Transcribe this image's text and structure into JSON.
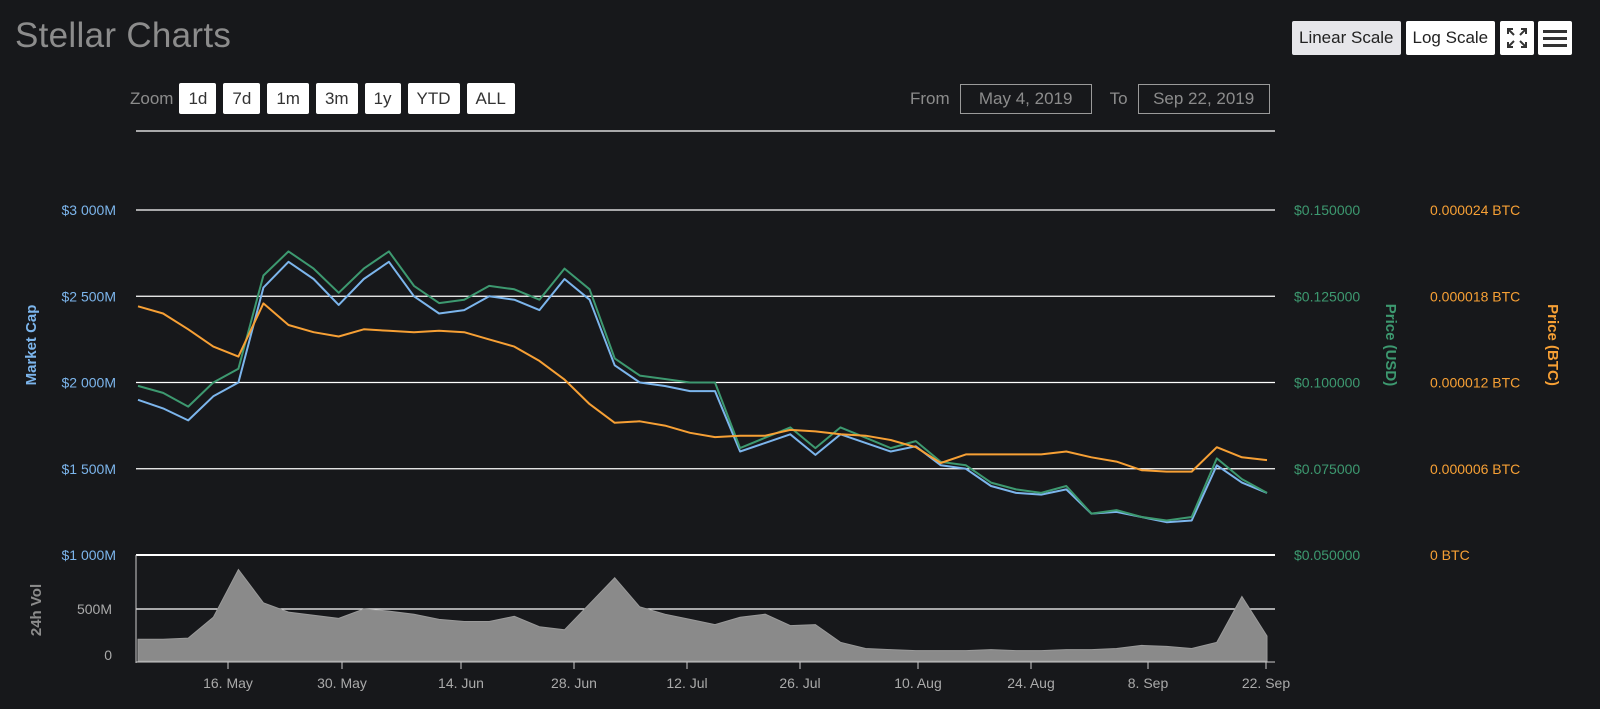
{
  "header": {
    "title": "Stellar Charts",
    "scale_buttons": [
      "Linear Scale",
      "Log Scale"
    ],
    "active_scale": "Linear Scale",
    "icons": [
      "fullscreen-icon",
      "menu-icon"
    ]
  },
  "zoom": {
    "label": "Zoom",
    "buttons": [
      "1d",
      "7d",
      "1m",
      "3m",
      "1y",
      "YTD",
      "ALL"
    ]
  },
  "range": {
    "from_label": "From",
    "from_value": "May 4, 2019",
    "to_label": "To",
    "to_value": "Sep 22, 2019"
  },
  "colors": {
    "background": "#17181b",
    "market_cap": "#7cb5ec",
    "price_usd": "#3d9970",
    "price_btc": "#f7a035",
    "volume": "#8a8a8a",
    "grid": "#ffffff"
  },
  "chart_data": {
    "type": "line",
    "x_domain": [
      "May 10, 2019",
      "Sep 22, 2019"
    ],
    "x_ticks": [
      "16. May",
      "30. May",
      "14. Jun",
      "28. Jun",
      "12. Jul",
      "26. Jul",
      "10. Aug",
      "24. Aug",
      "8. Sep",
      "22. Sep"
    ],
    "axes": {
      "market_cap": {
        "label": "Market Cap",
        "ticks": [
          "$1 000M",
          "$1 500M",
          "$2 000M",
          "$2 500M",
          "$3 000M"
        ],
        "range": [
          1000,
          3000
        ],
        "unit": "$M"
      },
      "price_usd": {
        "label": "Price (USD)",
        "ticks": [
          "$0.050000",
          "$0.075000",
          "$0.100000",
          "$0.125000",
          "$0.150000"
        ],
        "range": [
          0.05,
          0.15
        ]
      },
      "price_btc": {
        "label": "Price (BTC)",
        "ticks": [
          "0 BTC",
          "0.000006 BTC",
          "0.000012 BTC",
          "0.000018 BTC",
          "0.000024 BTC"
        ],
        "range": [
          0,
          2.4e-05
        ]
      },
      "volume": {
        "label": "24h Vol",
        "ticks": [
          "0",
          "500M"
        ],
        "range": [
          0,
          1000
        ],
        "unit": "M"
      }
    },
    "x": [
      "May 10",
      "May 13",
      "May 16",
      "May 19",
      "May 22",
      "May 25",
      "May 28",
      "May 31",
      "Jun 3",
      "Jun 6",
      "Jun 9",
      "Jun 12",
      "Jun 15",
      "Jun 18",
      "Jun 21",
      "Jun 24",
      "Jun 27",
      "Jun 30",
      "Jul 3",
      "Jul 6",
      "Jul 9",
      "Jul 12",
      "Jul 15",
      "Jul 18",
      "Jul 21",
      "Jul 24",
      "Jul 27",
      "Jul 30",
      "Aug 2",
      "Aug 5",
      "Aug 8",
      "Aug 11",
      "Aug 14",
      "Aug 17",
      "Aug 20",
      "Aug 23",
      "Aug 26",
      "Aug 29",
      "Sep 1",
      "Sep 4",
      "Sep 7",
      "Sep 10",
      "Sep 13",
      "Sep 16",
      "Sep 19",
      "Sep 22"
    ],
    "series": [
      {
        "name": "Market Cap",
        "axis": "market_cap",
        "values": [
          1900,
          1850,
          1780,
          1920,
          2000,
          2550,
          2700,
          2600,
          2450,
          2600,
          2700,
          2500,
          2400,
          2420,
          2500,
          2480,
          2420,
          2600,
          2480,
          2100,
          2000,
          1980,
          1950,
          1950,
          1600,
          1650,
          1700,
          1580,
          1700,
          1650,
          1600,
          1630,
          1520,
          1500,
          1400,
          1360,
          1350,
          1380,
          1240,
          1250,
          1220,
          1190,
          1200,
          1520,
          1420,
          1360
        ]
      },
      {
        "name": "Price (USD)",
        "axis": "price_usd",
        "values": [
          0.099,
          0.097,
          0.093,
          0.1,
          0.104,
          0.131,
          0.138,
          0.133,
          0.126,
          0.133,
          0.138,
          0.128,
          0.123,
          0.124,
          0.128,
          0.127,
          0.124,
          0.133,
          0.127,
          0.107,
          0.102,
          0.101,
          0.1,
          0.1,
          0.081,
          0.084,
          0.087,
          0.081,
          0.087,
          0.084,
          0.081,
          0.083,
          0.077,
          0.076,
          0.071,
          0.069,
          0.068,
          0.07,
          0.062,
          0.063,
          0.061,
          0.06,
          0.061,
          0.078,
          0.072,
          0.068
        ]
      },
      {
        "name": "Price (BTC)",
        "axis": "price_btc",
        "values": [
          1.73e-05,
          1.68e-05,
          1.57e-05,
          1.45e-05,
          1.38e-05,
          1.75e-05,
          1.6e-05,
          1.55e-05,
          1.52e-05,
          1.57e-05,
          1.56e-05,
          1.55e-05,
          1.56e-05,
          1.55e-05,
          1.5e-05,
          1.45e-05,
          1.35e-05,
          1.22e-05,
          1.05e-05,
          9.2e-06,
          9.3e-06,
          9e-06,
          8.5e-06,
          8.2e-06,
          8.3e-06,
          8.3e-06,
          8.7e-06,
          8.6e-06,
          8.4e-06,
          8.3e-06,
          8e-06,
          7.5e-06,
          6.4e-06,
          7e-06,
          7e-06,
          7e-06,
          7e-06,
          7.2e-06,
          6.8e-06,
          6.5e-06,
          5.9e-06,
          5.8e-06,
          5.8e-06,
          7.5e-06,
          6.8e-06,
          6.6e-06
        ]
      },
      {
        "name": "24h Vol",
        "axis": "volume",
        "values": [
          210,
          210,
          220,
          420,
          880,
          560,
          470,
          440,
          410,
          500,
          480,
          450,
          400,
          380,
          380,
          430,
          330,
          300,
          550,
          800,
          520,
          450,
          400,
          350,
          420,
          450,
          340,
          350,
          180,
          120,
          110,
          100,
          100,
          100,
          110,
          100,
          100,
          110,
          110,
          120,
          150,
          140,
          120,
          180,
          620,
          240
        ]
      }
    ]
  }
}
